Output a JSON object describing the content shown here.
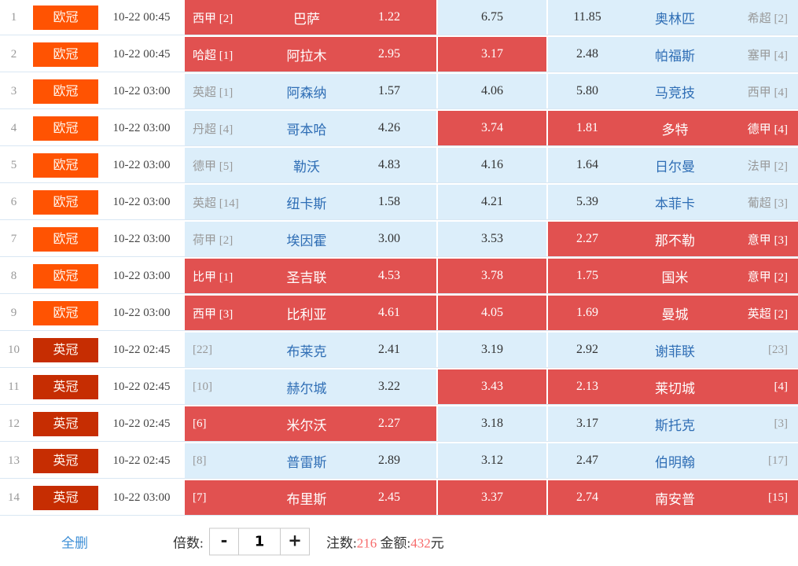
{
  "colors": {
    "selected_cell": "#E15150",
    "unselected_cell": "#DCEEFA",
    "champions_league_badge": "#FF5302",
    "english_championship_badge": "#C62D02",
    "team_name_text": "#2F6EB5",
    "stat_value_text": "#F76C6C",
    "delete_all_link": "#3E8FD6"
  },
  "table": {
    "rows": [
      {
        "num": "1",
        "league": "欧冠",
        "time": "10-22 00:45",
        "home": {
          "rank": "西甲 [2]",
          "team": "巴萨",
          "odds": "1.22",
          "selected": true
        },
        "draw": {
          "odds": "6.75",
          "selected": false
        },
        "away": {
          "odds": "11.85",
          "team": "奥林匹",
          "rank": "希超 [2]",
          "selected": false
        }
      },
      {
        "num": "2",
        "league": "欧冠",
        "time": "10-22 00:45",
        "home": {
          "rank": "哈超 [1]",
          "team": "阿拉木",
          "odds": "2.95",
          "selected": true
        },
        "draw": {
          "odds": "3.17",
          "selected": true
        },
        "away": {
          "odds": "2.48",
          "team": "帕福斯",
          "rank": "塞甲 [4]",
          "selected": false
        }
      },
      {
        "num": "3",
        "league": "欧冠",
        "time": "10-22 03:00",
        "home": {
          "rank": "英超 [1]",
          "team": "阿森纳",
          "odds": "1.57",
          "selected": false
        },
        "draw": {
          "odds": "4.06",
          "selected": false
        },
        "away": {
          "odds": "5.80",
          "team": "马竞技",
          "rank": "西甲 [4]",
          "selected": false
        }
      },
      {
        "num": "4",
        "league": "欧冠",
        "time": "10-22 03:00",
        "home": {
          "rank": "丹超 [4]",
          "team": "哥本哈",
          "odds": "4.26",
          "selected": false
        },
        "draw": {
          "odds": "3.74",
          "selected": true
        },
        "away": {
          "odds": "1.81",
          "team": "多特",
          "rank": "德甲 [4]",
          "selected": true
        }
      },
      {
        "num": "5",
        "league": "欧冠",
        "time": "10-22 03:00",
        "home": {
          "rank": "德甲 [5]",
          "team": "勒沃",
          "odds": "4.83",
          "selected": false
        },
        "draw": {
          "odds": "4.16",
          "selected": false
        },
        "away": {
          "odds": "1.64",
          "team": "日尔曼",
          "rank": "法甲 [2]",
          "selected": false
        }
      },
      {
        "num": "6",
        "league": "欧冠",
        "time": "10-22 03:00",
        "home": {
          "rank": "英超 [14]",
          "team": "纽卡斯",
          "odds": "1.58",
          "selected": false
        },
        "draw": {
          "odds": "4.21",
          "selected": false
        },
        "away": {
          "odds": "5.39",
          "team": "本菲卡",
          "rank": "葡超 [3]",
          "selected": false
        }
      },
      {
        "num": "7",
        "league": "欧冠",
        "time": "10-22 03:00",
        "home": {
          "rank": "荷甲 [2]",
          "team": "埃因霍",
          "odds": "3.00",
          "selected": false
        },
        "draw": {
          "odds": "3.53",
          "selected": false
        },
        "away": {
          "odds": "2.27",
          "team": "那不勒",
          "rank": "意甲 [3]",
          "selected": true
        }
      },
      {
        "num": "8",
        "league": "欧冠",
        "time": "10-22 03:00",
        "home": {
          "rank": "比甲 [1]",
          "team": "圣吉联",
          "odds": "4.53",
          "selected": true
        },
        "draw": {
          "odds": "3.78",
          "selected": true
        },
        "away": {
          "odds": "1.75",
          "team": "国米",
          "rank": "意甲 [2]",
          "selected": true
        }
      },
      {
        "num": "9",
        "league": "欧冠",
        "time": "10-22 03:00",
        "home": {
          "rank": "西甲 [3]",
          "team": "比利亚",
          "odds": "4.61",
          "selected": true
        },
        "draw": {
          "odds": "4.05",
          "selected": true
        },
        "away": {
          "odds": "1.69",
          "team": "曼城",
          "rank": "英超 [2]",
          "selected": true
        }
      },
      {
        "num": "10",
        "league": "英冠",
        "time": "10-22 02:45",
        "home": {
          "rank": "[22]",
          "team": "布莱克",
          "odds": "2.41",
          "selected": false
        },
        "draw": {
          "odds": "3.19",
          "selected": false
        },
        "away": {
          "odds": "2.92",
          "team": "谢菲联",
          "rank": "[23]",
          "selected": false
        }
      },
      {
        "num": "11",
        "league": "英冠",
        "time": "10-22 02:45",
        "home": {
          "rank": "[10]",
          "team": "赫尔城",
          "odds": "3.22",
          "selected": false
        },
        "draw": {
          "odds": "3.43",
          "selected": true
        },
        "away": {
          "odds": "2.13",
          "team": "莱切城",
          "rank": "[4]",
          "selected": true
        }
      },
      {
        "num": "12",
        "league": "英冠",
        "time": "10-22 02:45",
        "home": {
          "rank": "[6]",
          "team": "米尔沃",
          "odds": "2.27",
          "selected": true
        },
        "draw": {
          "odds": "3.18",
          "selected": false
        },
        "away": {
          "odds": "3.17",
          "team": "斯托克",
          "rank": "[3]",
          "selected": false
        }
      },
      {
        "num": "13",
        "league": "英冠",
        "time": "10-22 02:45",
        "home": {
          "rank": "[8]",
          "team": "普雷斯",
          "odds": "2.89",
          "selected": false
        },
        "draw": {
          "odds": "3.12",
          "selected": false
        },
        "away": {
          "odds": "2.47",
          "team": "伯明翰",
          "rank": "[17]",
          "selected": false
        }
      },
      {
        "num": "14",
        "league": "英冠",
        "time": "10-22 03:00",
        "home": {
          "rank": "[7]",
          "team": "布里斯",
          "odds": "2.45",
          "selected": true
        },
        "draw": {
          "odds": "3.37",
          "selected": true
        },
        "away": {
          "odds": "2.74",
          "team": "南安普",
          "rank": "[15]",
          "selected": true
        }
      }
    ]
  },
  "footer": {
    "delete_all": "全删",
    "multiplier_label": "倍数:",
    "minus": "-",
    "multiplier_value": "1",
    "plus": "+",
    "bets_label": "注数:",
    "bets_value": "216",
    "space": " ",
    "amount_label": "金额:",
    "amount_value": "432",
    "amount_unit": "元"
  }
}
